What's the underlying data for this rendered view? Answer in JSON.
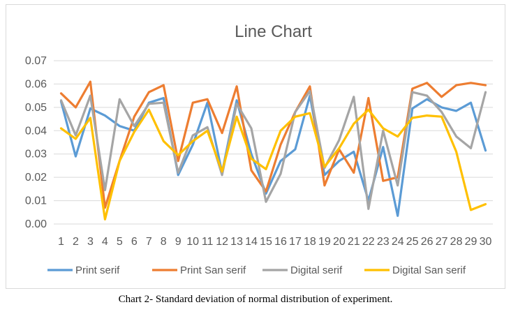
{
  "caption": "Chart 2- Standard deviation of normal distribution of experiment.",
  "chart_data": {
    "type": "line",
    "title": "Line Chart",
    "xlabel": "",
    "ylabel": "",
    "ylim": [
      0,
      0.07
    ],
    "yticks": [
      "0.00",
      "0.01",
      "0.02",
      "0.03",
      "0.04",
      "0.05",
      "0.06",
      "0.07"
    ],
    "categories": [
      "1",
      "2",
      "3",
      "4",
      "5",
      "6",
      "7",
      "8",
      "9",
      "10",
      "11",
      "12",
      "13",
      "14",
      "15",
      "16",
      "17",
      "18",
      "19",
      "20",
      "21",
      "22",
      "23",
      "24",
      "25",
      "26",
      "27",
      "28",
      "29",
      "30"
    ],
    "grid": true,
    "legend_position": "bottom",
    "series": [
      {
        "name": "Print serif",
        "color": "#5b9bd5",
        "values": [
          0.0525,
          0.029,
          0.0495,
          0.0465,
          0.042,
          0.04,
          0.052,
          0.054,
          0.021,
          0.034,
          0.052,
          0.022,
          0.053,
          0.03,
          0.013,
          0.027,
          0.032,
          0.055,
          0.021,
          0.027,
          0.031,
          0.01,
          0.033,
          0.0035,
          0.0495,
          0.0535,
          0.05,
          0.0485,
          0.052,
          0.0315
        ]
      },
      {
        "name": "Print San serif",
        "color": "#ed7d31",
        "values": [
          0.056,
          0.05,
          0.061,
          0.007,
          0.027,
          0.046,
          0.0565,
          0.0595,
          0.027,
          0.052,
          0.0535,
          0.039,
          0.059,
          0.023,
          0.014,
          0.034,
          0.048,
          0.059,
          0.0165,
          0.032,
          0.022,
          0.054,
          0.0185,
          0.02,
          0.058,
          0.0605,
          0.0545,
          0.0595,
          0.0605,
          0.0595
        ]
      },
      {
        "name": "Digital serif",
        "color": "#a5a5a5",
        "values": [
          0.053,
          0.038,
          0.055,
          0.0145,
          0.0535,
          0.042,
          0.0515,
          0.052,
          0.022,
          0.038,
          0.0415,
          0.021,
          0.0515,
          0.041,
          0.0095,
          0.0215,
          0.048,
          0.057,
          0.024,
          0.036,
          0.0545,
          0.0065,
          0.04,
          0.0165,
          0.0565,
          0.055,
          0.048,
          0.0375,
          0.0325,
          0.0565
        ]
      },
      {
        "name": "Digital San serif",
        "color": "#ffc000",
        "values": [
          0.041,
          0.0365,
          0.0455,
          0.002,
          0.027,
          0.0395,
          0.049,
          0.0355,
          0.0295,
          0.0355,
          0.04,
          0.0225,
          0.046,
          0.028,
          0.0235,
          0.04,
          0.046,
          0.0475,
          0.0245,
          0.0325,
          0.043,
          0.049,
          0.041,
          0.0375,
          0.0455,
          0.0465,
          0.046,
          0.031,
          0.006,
          0.0085
        ]
      }
    ]
  }
}
